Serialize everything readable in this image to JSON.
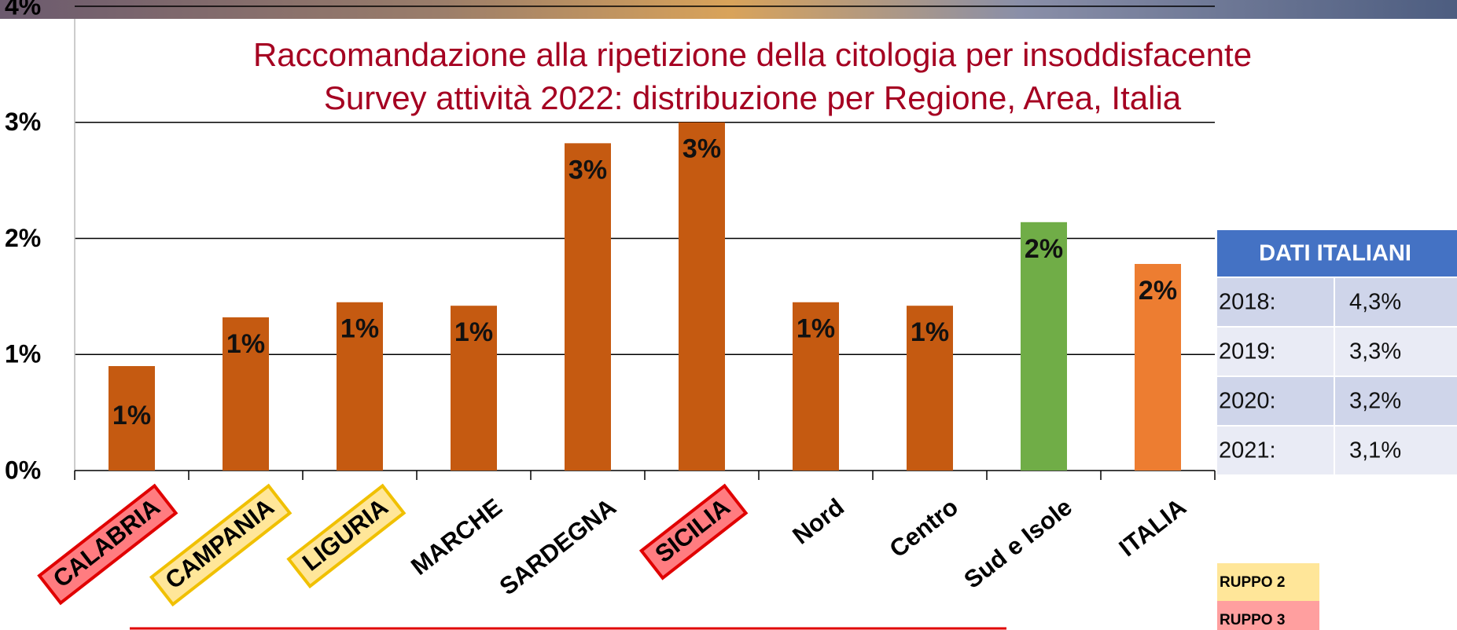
{
  "chart_data": {
    "type": "bar",
    "title": [
      "Raccomandazione alla ripetizione della citologia per insoddisfacente",
      "Survey attività 2022: distribuzione per Regione, Area, Italia"
    ],
    "categories": [
      "CALABRIA",
      "CAMPANIA",
      "LIGURIA",
      "MARCHE",
      "SARDEGNA",
      "SICILIA",
      "Nord",
      "Centro",
      "Sud e Isole",
      "ITALIA"
    ],
    "values": [
      0.9,
      1.32,
      1.45,
      1.42,
      2.82,
      3.0,
      1.45,
      1.42,
      2.14,
      1.78
    ],
    "value_labels": [
      "1%",
      "1%",
      "1%",
      "1%",
      "3%",
      "3%",
      "1%",
      "1%",
      "2%",
      "2%"
    ],
    "colors": [
      "#c55a11",
      "#c55a11",
      "#c55a11",
      "#c55a11",
      "#c55a11",
      "#c55a11",
      "#c55a11",
      "#c55a11",
      "#70ad47",
      "#ed7d31"
    ],
    "label_colors": [
      "#ff7c80",
      "#ffe699",
      "#ffe699",
      null,
      null,
      "#ff7c80",
      null,
      null,
      null,
      null
    ],
    "ylim": [
      0,
      4
    ],
    "yticks": [
      {
        "value": 0,
        "label": "0%"
      },
      {
        "value": 1,
        "label": "1%"
      },
      {
        "value": 2,
        "label": "2%"
      },
      {
        "value": 3,
        "label": "3%"
      },
      {
        "value": 4,
        "label": "4%"
      }
    ],
    "grid": true,
    "legend": [
      {
        "label": "RUPPO 2",
        "color": "#ffe699"
      },
      {
        "label": "RUPPO 3",
        "color": "#ff9f9f"
      }
    ]
  },
  "table": {
    "title": "DATI ITALIANI",
    "rows": [
      [
        "2018:",
        "4,3%"
      ],
      [
        "2019:",
        "3,3%"
      ],
      [
        "2020:",
        "3,2%"
      ],
      [
        "2021:",
        "3,1%"
      ]
    ]
  }
}
